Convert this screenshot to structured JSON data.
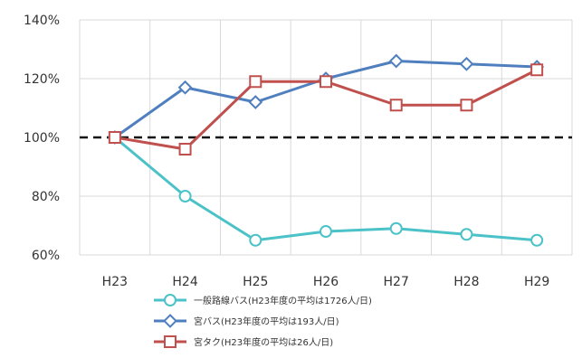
{
  "chart_data": {
    "type": "line",
    "categories": [
      "H23",
      "H24",
      "H25",
      "H26",
      "H27",
      "H28",
      "H29"
    ],
    "ylim": [
      60,
      140
    ],
    "yticks": [
      "140%",
      "120%",
      "100%",
      "80%",
      "60%"
    ],
    "ytick_values": [
      140,
      120,
      100,
      80,
      60
    ],
    "reference_line": {
      "value": 100,
      "style": "dashed",
      "color": "#111111"
    },
    "grid": "horizontal and vertical",
    "legend_position": "bottom",
    "series": [
      {
        "name": "一般路線バス(H23年度の平均は1726人/日)",
        "values": [
          100,
          80,
          65,
          68,
          69,
          67,
          65
        ],
        "color": "#4bc2c8",
        "marker": "circle-open"
      },
      {
        "name": "宮バス(H23年度の平均は193人/日)",
        "values": [
          100,
          117,
          112,
          120,
          126,
          125,
          124
        ],
        "color": "#4f7fbf",
        "marker": "diamond-open"
      },
      {
        "name": "宮タク(H23年度の平均は26人/日)",
        "values": [
          100,
          96,
          119,
          119,
          111,
          111,
          123
        ],
        "color": "#c0504d",
        "marker": "square-open"
      }
    ]
  }
}
